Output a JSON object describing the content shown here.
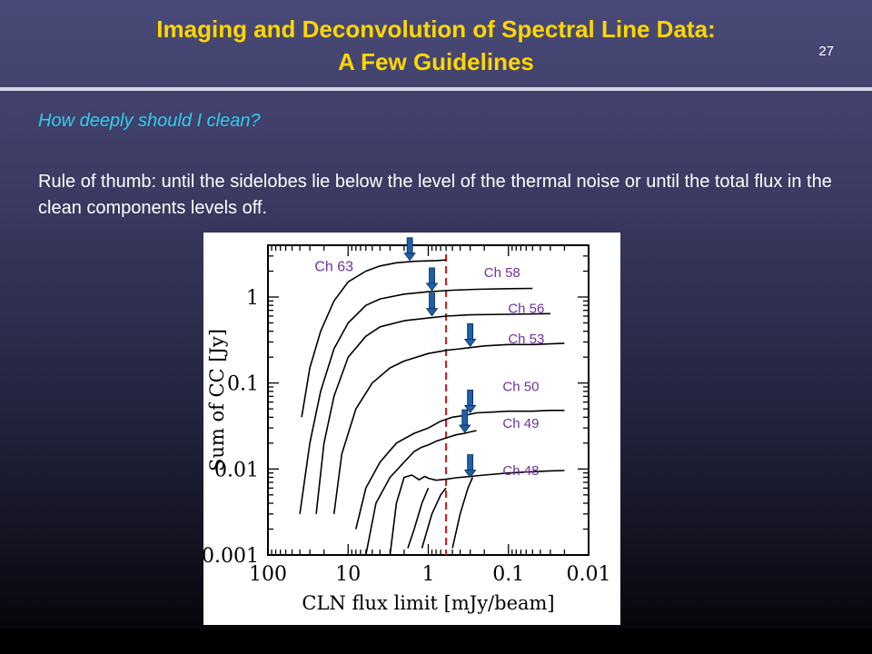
{
  "slide": {
    "title_line1": "Imaging and Deconvolution of Spectral Line Data:",
    "title_line2": "A Few Guidelines",
    "page_number": "27",
    "question": "How deeply should I clean?",
    "body": "Rule of thumb: until the sidelobes lie below the level of the thermal noise or until the total flux in the clean components levels off."
  },
  "colors": {
    "title": "#ffd700",
    "question": "#33ccee",
    "channel_label": "#7030a0",
    "arrow": "#1f5fa8",
    "noise_line": "#cc2222"
  },
  "chart_data": {
    "type": "line",
    "xscale": "log",
    "yscale": "log",
    "x_reversed": true,
    "xlim": [
      100,
      0.01
    ],
    "ylim": [
      0.001,
      4
    ],
    "xlabel": "CLN flux limit [mJy/beam]",
    "ylabel": "Sum of CC [Jy]",
    "x_ticks": [
      {
        "value": 100,
        "label": "100"
      },
      {
        "value": 10,
        "label": "10"
      },
      {
        "value": 1,
        "label": "1"
      },
      {
        "value": 0.1,
        "label": "0.1"
      },
      {
        "value": 0.01,
        "label": "0.01"
      }
    ],
    "y_ticks": [
      {
        "value": 1,
        "label": "1"
      },
      {
        "value": 0.1,
        "label": "0.1"
      },
      {
        "value": 0.01,
        "label": "0.01"
      },
      {
        "value": 0.001,
        "label": "0.001"
      }
    ],
    "noise_level_x": 0.6,
    "series": [
      {
        "name": "Ch 63",
        "x": [
          38,
          30,
          22,
          15,
          10,
          6,
          4,
          2.5,
          1.5,
          0.8,
          0.6
        ],
        "y": [
          0.04,
          0.15,
          0.4,
          0.9,
          1.5,
          2.0,
          2.3,
          2.5,
          2.6,
          2.65,
          2.7
        ]
      },
      {
        "name": "Ch 58",
        "x": [
          40,
          30,
          22,
          15,
          10,
          6,
          4,
          2,
          1,
          0.5,
          0.25,
          0.1,
          0.05
        ],
        "y": [
          0.003,
          0.02,
          0.08,
          0.25,
          0.5,
          0.8,
          0.95,
          1.08,
          1.15,
          1.2,
          1.23,
          1.25,
          1.26
        ]
      },
      {
        "name": "Ch 56",
        "x": [
          25,
          20,
          15,
          10,
          6,
          4,
          2,
          1,
          0.6,
          0.3,
          0.1,
          0.03
        ],
        "y": [
          0.003,
          0.02,
          0.07,
          0.2,
          0.35,
          0.45,
          0.53,
          0.57,
          0.6,
          0.62,
          0.63,
          0.64
        ]
      },
      {
        "name": "Ch 53",
        "x": [
          15,
          12,
          8,
          5,
          3,
          2,
          1,
          0.6,
          0.4,
          0.2,
          0.1,
          0.05,
          0.02
        ],
        "y": [
          0.003,
          0.015,
          0.05,
          0.1,
          0.15,
          0.18,
          0.22,
          0.24,
          0.25,
          0.27,
          0.28,
          0.28,
          0.29
        ]
      },
      {
        "name": "Ch 50",
        "x": [
          8,
          6,
          4,
          2.5,
          1.5,
          1,
          0.7,
          0.5,
          0.35,
          0.25,
          0.15,
          0.1,
          0.05,
          0.03,
          0.02
        ],
        "y": [
          0.002,
          0.006,
          0.012,
          0.02,
          0.026,
          0.03,
          0.036,
          0.04,
          0.042,
          0.045,
          0.046,
          0.047,
          0.047,
          0.048,
          0.048
        ]
      },
      {
        "name": "Ch 49",
        "x": [
          6,
          4.5,
          3,
          2,
          1.5,
          1.2,
          1,
          0.8,
          0.6,
          0.45,
          0.35,
          0.3,
          0.25
        ],
        "y": [
          0.001,
          0.004,
          0.008,
          0.012,
          0.016,
          0.018,
          0.019,
          0.021,
          0.023,
          0.025,
          0.026,
          0.027,
          0.028
        ]
      },
      {
        "name": "Ch 48",
        "x": [
          3,
          2.5,
          2,
          1.6,
          1.3,
          1.1,
          1,
          0.8,
          0.6,
          0.45,
          0.3,
          0.2,
          0.1,
          0.05,
          0.03,
          0.02
        ],
        "y": [
          0.001,
          0.004,
          0.008,
          0.0085,
          0.0075,
          0.0082,
          0.0078,
          0.0074,
          0.0076,
          0.0079,
          0.0082,
          0.0085,
          0.009,
          0.0093,
          0.0095,
          0.0096
        ]
      },
      {
        "name": "",
        "x": [
          1.8,
          1.5,
          1.2,
          1
        ],
        "y": [
          0.0012,
          0.002,
          0.004,
          0.006
        ]
      },
      {
        "name": "",
        "x": [
          1.2,
          0.9,
          0.7,
          0.6
        ],
        "y": [
          0.0012,
          0.003,
          0.005,
          0.006
        ]
      },
      {
        "name": "",
        "x": [
          0.5,
          0.4,
          0.32,
          0.28
        ],
        "y": [
          0.0012,
          0.003,
          0.006,
          0.008
        ]
      }
    ],
    "channel_labels": [
      {
        "name": "Ch 63",
        "x": 15,
        "y": 2.0
      },
      {
        "name": "Ch 58",
        "x": 0.12,
        "y": 1.7
      },
      {
        "name": "Ch 56",
        "x": 0.06,
        "y": 0.65
      },
      {
        "name": "Ch 53",
        "x": 0.06,
        "y": 0.29
      },
      {
        "name": "Ch 50",
        "x": 0.07,
        "y": 0.081
      },
      {
        "name": "Ch 49",
        "x": 0.07,
        "y": 0.03
      },
      {
        "name": "Ch 48",
        "x": 0.07,
        "y": 0.0085
      }
    ],
    "arrows": [
      {
        "x": 1.7,
        "y": 2.6
      },
      {
        "x": 0.9,
        "y": 1.16
      },
      {
        "x": 0.9,
        "y": 0.59
      },
      {
        "x": 0.3,
        "y": 0.26
      },
      {
        "x": 0.3,
        "y": 0.044
      },
      {
        "x": 0.35,
        "y": 0.026
      },
      {
        "x": 0.3,
        "y": 0.0078
      }
    ]
  }
}
